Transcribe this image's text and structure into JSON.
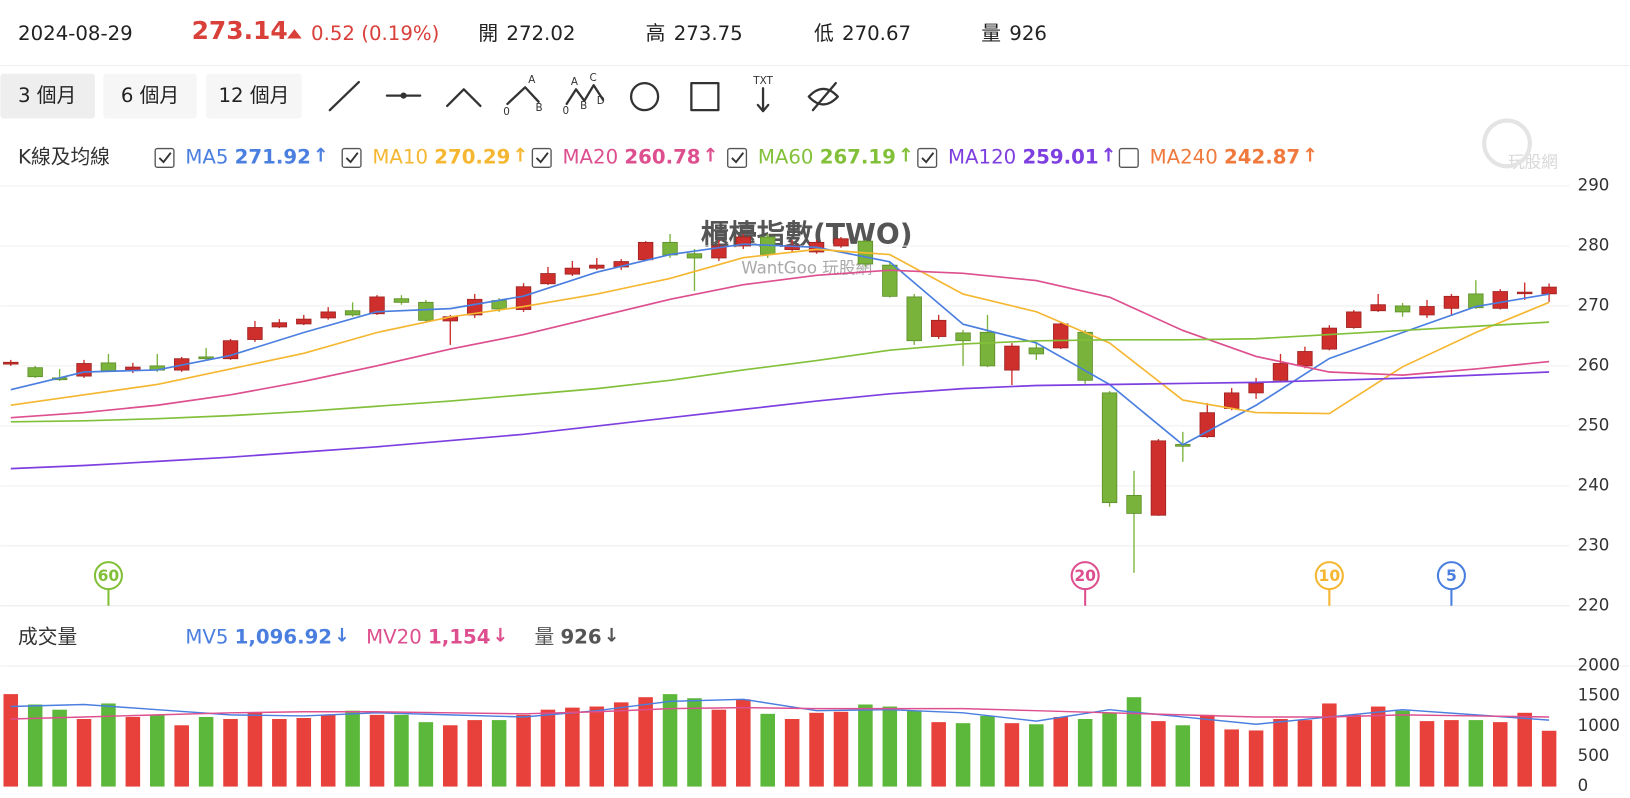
{
  "header": {
    "date": "2024-08-29",
    "price": 273.14,
    "change": "0.52 (0.19%)",
    "stats": [
      {
        "label": "開",
        "value": 272.02
      },
      {
        "label": "高",
        "value": 273.75
      },
      {
        "label": "低",
        "value": 270.67
      },
      {
        "label": "量",
        "value": 926
      }
    ]
  },
  "ranges": [
    "3 個月",
    "6 個月",
    "12 個月"
  ],
  "tool_labels": {
    "abc": [
      "A",
      "0",
      "B"
    ],
    "abcd": [
      "A",
      "C",
      "0",
      "B",
      "D"
    ],
    "text": "TXT"
  },
  "logo_text": "玩股網",
  "chart_data": [
    {
      "type": "candlestick",
      "title": "櫃檯指數(TWO)",
      "subtitle": "WantGoo 玩股網",
      "label": "K線及均線",
      "ylim": [
        220,
        290
      ],
      "yticks": [
        220,
        230,
        240,
        250,
        260,
        270,
        280,
        290
      ],
      "grid": true,
      "up_color": "#cf2f2c",
      "down_color": "#7ab33b",
      "open": [
        260.3,
        259.7,
        258,
        258.3,
        260.5,
        259.3,
        260,
        259.3,
        261.5,
        261.2,
        264.4,
        266.5,
        267,
        268,
        269.2,
        268.7,
        271.2,
        270.6,
        267.5,
        268.5,
        270.9,
        269.4,
        273.7,
        275.3,
        276.3,
        276.5,
        277.7,
        280.6,
        278.7,
        278,
        280,
        281.5,
        279.4,
        279,
        280,
        280.8,
        276.8,
        271.5,
        264.9,
        265.5,
        265.6,
        259.3,
        263,
        263,
        265.6,
        255.5,
        238.4,
        235.1,
        246.9,
        248.2,
        252.9,
        255.5,
        257.6,
        260,
        262.8,
        266.4,
        269.2,
        270,
        268.5,
        269.6,
        272,
        269.6,
        272.1,
        272.02
      ],
      "high": [
        261,
        260,
        259.5,
        261,
        262,
        260.5,
        262,
        261.5,
        263,
        264.5,
        267.5,
        267.8,
        268.5,
        269.8,
        270.6,
        271.8,
        271.8,
        271,
        268.5,
        272,
        271.3,
        273.8,
        276.5,
        277.5,
        278,
        277.8,
        280.8,
        282,
        279.5,
        281,
        282,
        282,
        281,
        281,
        281.5,
        281,
        277.5,
        272,
        268.5,
        266,
        268.5,
        263.8,
        264,
        267.4,
        266,
        255.8,
        242.5,
        247.8,
        249,
        253.8,
        256.3,
        258,
        262,
        263.2,
        266.8,
        269.3,
        272,
        270.5,
        271,
        272,
        274.3,
        272.8,
        273.9,
        273.75
      ],
      "low": [
        260,
        258,
        257.5,
        258,
        259,
        258.8,
        259,
        259,
        261,
        261,
        264,
        266.3,
        266.8,
        267.7,
        268.2,
        268.5,
        270.2,
        267.2,
        263.5,
        268,
        269,
        269,
        273.5,
        275,
        276,
        276,
        277.5,
        278,
        272.5,
        277.5,
        279.5,
        278,
        279,
        278.7,
        279.7,
        276.5,
        271.4,
        263.5,
        264.5,
        260,
        259.8,
        256.8,
        261,
        262.8,
        257,
        236.5,
        225.5,
        235,
        244,
        248,
        252.6,
        254.5,
        257.4,
        259.6,
        262.6,
        266.2,
        269,
        268.2,
        268,
        268.5,
        269.5,
        269.4,
        271,
        270.67
      ],
      "close": [
        260.6,
        258.2,
        257.7,
        260.4,
        259.2,
        259.8,
        259.3,
        261.2,
        261.2,
        264.2,
        266.4,
        267.2,
        267.8,
        269,
        268.5,
        271.5,
        270.6,
        267.6,
        268.2,
        271.1,
        269.5,
        273.2,
        275.4,
        276.3,
        276.8,
        277.4,
        280.6,
        278.5,
        278,
        280,
        281.5,
        278.6,
        280.1,
        280.6,
        281.2,
        277,
        271.6,
        264.2,
        267.6,
        264.2,
        260,
        263.3,
        262,
        267,
        257.6,
        237.2,
        235.4,
        247.5,
        246.6,
        252.2,
        255.5,
        257.1,
        260.4,
        262.4,
        266.3,
        269,
        270.2,
        269,
        269.9,
        271.6,
        269.7,
        272.4,
        272.3,
        273.14
      ],
      "ma_x": [
        0,
        3,
        6,
        9,
        12,
        15,
        18,
        21,
        24,
        27,
        30,
        33,
        36,
        39,
        42,
        45,
        48,
        51,
        54,
        57,
        60,
        63
      ],
      "series": [
        {
          "name": "MA5",
          "color": "#4a7fe0",
          "checked": true,
          "legend_value": 271.92,
          "trend": "↑",
          "values": [
            256.04,
            258.98,
            259.33,
            261.75,
            265.57,
            269.03,
            269.55,
            271.63,
            275.62,
            278.56,
            280.3,
            279.78,
            277.35,
            266.95,
            263.83,
            256.9,
            246.85,
            253.44,
            261.24,
            265.57,
            269.9,
            271.98
          ]
        },
        {
          "name": "MA10",
          "color": "#f5b731",
          "checked": true,
          "legend_value": 270.29,
          "trend": "↑",
          "values": [
            253.44,
            255.17,
            256.9,
            259.5,
            262.1,
            265.57,
            268.17,
            269.9,
            271.98,
            274.58,
            278.04,
            279.43,
            278.56,
            271.98,
            269.03,
            263.83,
            254.3,
            252.22,
            252.05,
            259.85,
            265.57,
            270.59
          ]
        },
        {
          "name": "MA20",
          "color": "#dd4f8e",
          "checked": true,
          "legend_value": 260.78,
          "trend": "↑",
          "values": [
            251.36,
            252.22,
            253.44,
            255.17,
            257.42,
            260.02,
            262.8,
            265.22,
            268.17,
            271.11,
            273.54,
            275.1,
            275.96,
            275.44,
            274.23,
            271.46,
            265.91,
            261.58,
            258.98,
            258.46,
            259.5,
            260.72
          ]
        },
        {
          "name": "MA60",
          "color": "#83c03a",
          "checked": true,
          "legend_value": 267.19,
          "trend": "↑",
          "values": [
            250.67,
            250.84,
            251.19,
            251.71,
            252.4,
            253.27,
            254.13,
            255.17,
            256.21,
            257.6,
            259.33,
            260.89,
            262.62,
            263.66,
            264.18,
            264.35,
            264.35,
            264.53,
            265.22,
            265.91,
            266.61,
            267.3
          ]
        },
        {
          "name": "MA120",
          "color": "#7e3fe0",
          "checked": true,
          "legend_value": 259.01,
          "trend": "↑",
          "values": [
            242.87,
            243.39,
            244.08,
            244.78,
            245.64,
            246.51,
            247.55,
            248.59,
            249.97,
            251.36,
            252.75,
            254.13,
            255.34,
            256.21,
            256.73,
            256.9,
            257.08,
            257.25,
            257.6,
            257.94,
            258.46,
            258.98
          ]
        },
        {
          "name": "MA240",
          "color": "#f07a3e",
          "checked": false,
          "legend_value": 242.87,
          "trend": "↑"
        }
      ],
      "markers": [
        {
          "label": 60,
          "index": 4,
          "color": "#83c03a"
        },
        {
          "label": 20,
          "index": 44,
          "color": "#dd4f8e"
        },
        {
          "label": 10,
          "index": 54,
          "color": "#f5b731"
        },
        {
          "label": 5,
          "index": 59,
          "color": "#4a7fe0"
        }
      ]
    },
    {
      "type": "bar",
      "label": "成交量",
      "ylim": [
        0,
        2000
      ],
      "yticks": [
        0,
        500,
        1000,
        1500,
        2000
      ],
      "up_color": "#e8403a",
      "down_color": "#5cb83a",
      "values": [
        1534,
        1362,
        1276,
        1121,
        1379,
        1155,
        1190,
        1017,
        1155,
        1121,
        1224,
        1121,
        1138,
        1190,
        1259,
        1190,
        1190,
        1069,
        1017,
        1103,
        1103,
        1190,
        1276,
        1310,
        1328,
        1397,
        1483,
        1534,
        1466,
        1276,
        1448,
        1207,
        1121,
        1224,
        1241,
        1362,
        1328,
        1259,
        1069,
        1052,
        1172,
        1052,
        1034,
        1155,
        1121,
        1224,
        1483,
        1086,
        1017,
        1190,
        948,
        931,
        1121,
        1103,
        1379,
        1190,
        1328,
        1259,
        1086,
        1103,
        1103,
        1069,
        1224,
        926
      ],
      "ma_x": [
        0,
        3,
        6,
        9,
        12,
        15,
        18,
        21,
        24,
        27,
        30,
        33,
        36,
        39,
        42,
        45,
        48,
        51,
        54,
        57,
        60,
        63
      ],
      "series": [
        {
          "name": "MV5",
          "color": "#4a7fe0",
          "legend_value": "1,096.92",
          "trend": "↓",
          "values": [
            1328,
            1362,
            1276,
            1190,
            1172,
            1224,
            1190,
            1155,
            1259,
            1414,
            1448,
            1259,
            1276,
            1224,
            1086,
            1276,
            1155,
            1034,
            1155,
            1276,
            1190,
            1103
          ]
        },
        {
          "name": "MV20",
          "color": "#dd4f8e",
          "legend_value": "1,154",
          "trend": "↓",
          "values": [
            1121,
            1155,
            1190,
            1224,
            1241,
            1241,
            1224,
            1207,
            1241,
            1293,
            1310,
            1293,
            1293,
            1293,
            1259,
            1224,
            1190,
            1155,
            1155,
            1190,
            1172,
            1155
          ]
        }
      ],
      "volume_legend": {
        "name": "量",
        "legend_value": 926,
        "trend": "↓"
      }
    }
  ]
}
